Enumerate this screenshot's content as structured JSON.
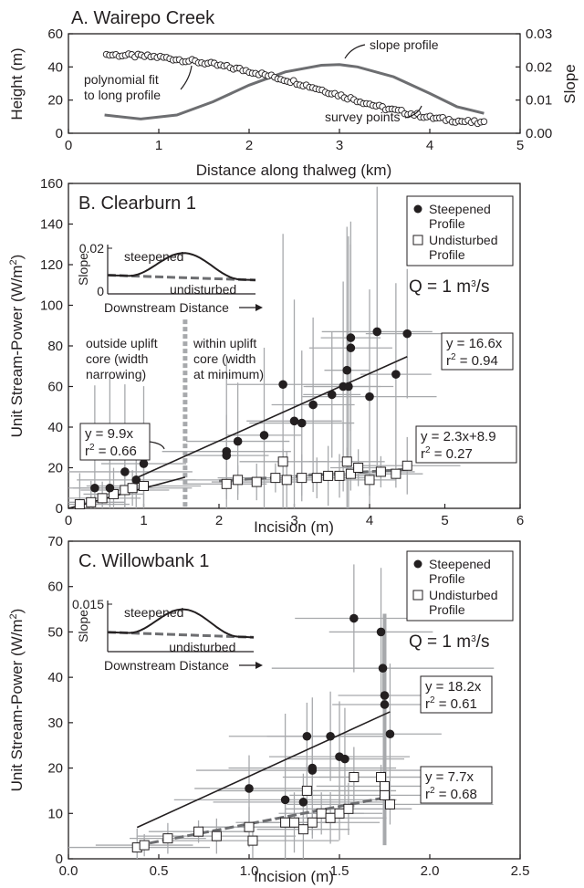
{
  "colors": {
    "ink": "#231f20",
    "gray": "#6d6e71",
    "light_gray": "#a7a9ac",
    "err_gray": "#a7a9ac",
    "fill_white": "#ffffff"
  },
  "chart_data": [
    {
      "id": "A",
      "type": "line",
      "title": "A. Wairepo Creek",
      "xlabel": "Distance along thalweg (km)",
      "ylabel": "Height (m)",
      "ylabel_right": "Slope",
      "xlim": [
        0,
        5
      ],
      "ylim": [
        0,
        60
      ],
      "ylim_right": [
        0,
        0.03
      ],
      "xticks": [
        "0",
        "1",
        "2",
        "3",
        "4",
        "5"
      ],
      "yticks": [
        "0",
        "20",
        "40",
        "60"
      ],
      "yticks_right": [
        "0.00",
        "0.01",
        "0.02",
        "0.03"
      ],
      "annotations": {
        "slope_profile": "slope profile",
        "fit_line1": "polynomial fit",
        "fit_line2": "to long profile",
        "survey_points": "survey points"
      },
      "height_fit": [
        [
          0.4,
          47.5
        ],
        [
          1.0,
          46.0
        ],
        [
          1.5,
          42.5
        ],
        [
          2.0,
          37.5
        ],
        [
          2.5,
          31.0
        ],
        [
          3.0,
          23.0
        ],
        [
          3.5,
          15.0
        ],
        [
          4.0,
          9.5
        ],
        [
          4.3,
          7.5
        ],
        [
          4.6,
          6.0
        ]
      ],
      "slope_curve": [
        [
          0.4,
          0.0055
        ],
        [
          0.8,
          0.0043
        ],
        [
          1.2,
          0.0055
        ],
        [
          1.6,
          0.0095
        ],
        [
          2.0,
          0.0145
        ],
        [
          2.4,
          0.0185
        ],
        [
          2.8,
          0.0205
        ],
        [
          3.0,
          0.0207
        ],
        [
          3.2,
          0.02
        ],
        [
          3.6,
          0.017
        ],
        [
          4.0,
          0.012
        ],
        [
          4.3,
          0.008
        ],
        [
          4.6,
          0.006
        ]
      ]
    },
    {
      "id": "B",
      "type": "scatter",
      "title": "B. Clearburn 1",
      "xlabel": "Incision (m)",
      "ylabel": "Unit Stream-Power (W/m²)",
      "xlim": [
        0,
        6
      ],
      "ylim": [
        0,
        160
      ],
      "xticks": [
        "0",
        "1",
        "2",
        "3",
        "4",
        "5",
        "6"
      ],
      "yticks": [
        "0",
        "20",
        "40",
        "60",
        "80",
        "100",
        "120",
        "140",
        "160"
      ],
      "legend": {
        "placement": "top-right",
        "items": [
          "Steepened Profile",
          "Undisturbed Profile"
        ]
      },
      "q_label": "Q = 1 m³/s",
      "zone_left": [
        "outside uplift",
        "core (width",
        "narrowing)"
      ],
      "zone_right": [
        "within uplift",
        "core (width",
        "at minimum)"
      ],
      "divider_x": 1.55,
      "steepened": [
        [
          0.35,
          10
        ],
        [
          0.55,
          10
        ],
        [
          0.75,
          18
        ],
        [
          0.9,
          14
        ],
        [
          1.0,
          22
        ],
        [
          2.1,
          28
        ],
        [
          2.1,
          26
        ],
        [
          2.25,
          33
        ],
        [
          2.6,
          36
        ],
        [
          2.85,
          61
        ],
        [
          3.0,
          43
        ],
        [
          3.1,
          42
        ],
        [
          3.25,
          51
        ],
        [
          3.5,
          56
        ],
        [
          3.65,
          60
        ],
        [
          3.72,
          60
        ],
        [
          3.7,
          68
        ],
        [
          3.75,
          84
        ],
        [
          3.75,
          79
        ],
        [
          4.0,
          55
        ],
        [
          4.1,
          87
        ],
        [
          4.35,
          66
        ],
        [
          4.5,
          86
        ]
      ],
      "undisturbed": [
        [
          0.15,
          2
        ],
        [
          0.3,
          3
        ],
        [
          0.45,
          5
        ],
        [
          0.6,
          7
        ],
        [
          0.75,
          9
        ],
        [
          0.85,
          10
        ],
        [
          1.0,
          11
        ],
        [
          2.1,
          12
        ],
        [
          2.25,
          14
        ],
        [
          2.5,
          13
        ],
        [
          2.75,
          15
        ],
        [
          2.9,
          14
        ],
        [
          3.1,
          15
        ],
        [
          3.3,
          15
        ],
        [
          3.45,
          16
        ],
        [
          3.6,
          16
        ],
        [
          3.75,
          17
        ],
        [
          3.85,
          20
        ],
        [
          4.0,
          14
        ],
        [
          4.15,
          18
        ],
        [
          4.35,
          17
        ],
        [
          4.5,
          21
        ],
        [
          2.85,
          23
        ],
        [
          3.7,
          23
        ]
      ],
      "fit_steepened": {
        "equation": "y = 16.6x",
        "r2_label": "r",
        "r2_sup": "2",
        "r2_value": " = 0.94",
        "x_range": [
          0.9,
          4.5
        ],
        "slope": 16.6,
        "intercept": 0
      },
      "fit_undisturbed": {
        "equation": "y = 2.3x+8.9",
        "r2_label": "r",
        "r2_sup": "2",
        "r2_value": " = 0.27",
        "x_range": [
          2.0,
          4.5
        ],
        "slope": 2.3,
        "intercept": 8.9
      },
      "fit_outside": {
        "equation": "y = 9.9x",
        "r2_label": "r",
        "r2_sup": "2",
        "r2_value": " = 0.66",
        "x_range": [
          0.0,
          1.55
        ],
        "slope": 9.9,
        "intercept": 0
      },
      "inset": {
        "ylabel": "Slope",
        "ytick_top": "0.02",
        "ytick_bottom": "0",
        "top_label": "steepened",
        "bottom_label": "undisturbed",
        "xlabel": "Downstream Distance"
      }
    },
    {
      "id": "C",
      "type": "scatter",
      "title": "C. Willowbank 1",
      "xlabel": "Incision (m)",
      "ylabel": "Unit Stream-Power (W/m²)",
      "xlim": [
        0,
        2.5
      ],
      "ylim": [
        0,
        70
      ],
      "xticks": [
        "0.0",
        "0.5",
        "1.0",
        "1.5",
        "2.0",
        "2.5"
      ],
      "yticks": [
        "0",
        "10",
        "20",
        "30",
        "40",
        "50",
        "60",
        "70"
      ],
      "legend": {
        "placement": "top-right",
        "items": [
          "Steepened Profile",
          "Undisturbed Profile"
        ]
      },
      "q_label": "Q = 1 m³/s",
      "steepened": [
        [
          1.0,
          15.5
        ],
        [
          1.2,
          13
        ],
        [
          1.3,
          12.5
        ],
        [
          1.32,
          27
        ],
        [
          1.35,
          19.5
        ],
        [
          1.35,
          20
        ],
        [
          1.45,
          27
        ],
        [
          1.5,
          22.5
        ],
        [
          1.53,
          22
        ],
        [
          1.58,
          53
        ],
        [
          1.73,
          50
        ],
        [
          1.74,
          42
        ],
        [
          1.75,
          36
        ],
        [
          1.75,
          34
        ],
        [
          1.78,
          27.5
        ]
      ],
      "undisturbed": [
        [
          0.38,
          2.5
        ],
        [
          0.42,
          3
        ],
        [
          0.55,
          4.5
        ],
        [
          0.72,
          6
        ],
        [
          0.82,
          5
        ],
        [
          1.0,
          7
        ],
        [
          1.02,
          4
        ],
        [
          1.2,
          8
        ],
        [
          1.25,
          8
        ],
        [
          1.32,
          15
        ],
        [
          1.35,
          8
        ],
        [
          1.4,
          10
        ],
        [
          1.45,
          9
        ],
        [
          1.5,
          10
        ],
        [
          1.55,
          11
        ],
        [
          1.58,
          18
        ],
        [
          1.73,
          18
        ],
        [
          1.75,
          16
        ],
        [
          1.78,
          12
        ],
        [
          1.75,
          14
        ],
        [
          1.3,
          6.5
        ]
      ],
      "fit_steepened": {
        "equation": "y = 18.2x",
        "r2_label": "r",
        "r2_sup": "2",
        "r2_value": " = 0.61",
        "x_range": [
          0.38,
          1.78
        ],
        "slope": 18.2,
        "intercept": 0
      },
      "fit_undisturbed": {
        "equation": "y = 7.7x",
        "r2_label": "r",
        "r2_sup": "2",
        "r2_value": " = 0.68",
        "x_range": [
          0.38,
          1.78
        ],
        "slope": 7.7,
        "intercept": 0
      },
      "inset": {
        "ylabel": "Slope",
        "ytick_top": "0.015",
        "ytick_bottom": "",
        "top_label": "steepened",
        "bottom_label": "undisturbed",
        "xlabel": "Downstream Distance"
      }
    }
  ]
}
